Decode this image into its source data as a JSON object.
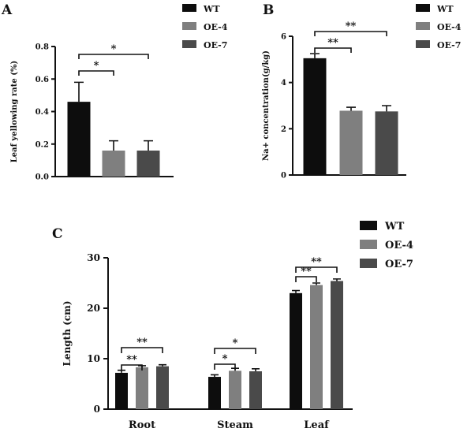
{
  "colors": {
    "WT": "#0d0d0d",
    "OE-4": "#7f7f7f",
    "OE-7": "#4a4a4a"
  },
  "chart_data": [
    {
      "panel": "A",
      "type": "bar",
      "categories": [
        "WT",
        "OE-4",
        "OE-7"
      ],
      "values": [
        0.46,
        0.16,
        0.16
      ],
      "errors": [
        0.12,
        0.06,
        0.06
      ],
      "ylabel": "Leaf yellowing rate (%)",
      "ylim": [
        0,
        0.8
      ],
      "yticks": [
        "0.0",
        "0.2",
        "0.4",
        "0.6",
        "0.8"
      ],
      "legend": [
        "WT",
        "OE-4",
        "OE-7"
      ],
      "legend_position": "top-right",
      "significance": [
        {
          "from": 0,
          "to": 1,
          "label": "*"
        },
        {
          "from": 0,
          "to": 2,
          "label": "*"
        }
      ]
    },
    {
      "panel": "B",
      "type": "bar",
      "categories": [
        "WT",
        "OE-4",
        "OE-7"
      ],
      "values": [
        5.05,
        2.78,
        2.75
      ],
      "errors": [
        0.2,
        0.15,
        0.25
      ],
      "ylabel": "Na+ concentration(g/kg)",
      "ylim": [
        0,
        6
      ],
      "yticks": [
        "0",
        "2",
        "4",
        "6"
      ],
      "legend": [
        "WT",
        "OE-4",
        "OE-7"
      ],
      "legend_position": "top-right",
      "significance": [
        {
          "from": 0,
          "to": 1,
          "label": "**"
        },
        {
          "from": 0,
          "to": 2,
          "label": "**"
        }
      ]
    },
    {
      "panel": "C",
      "type": "bar",
      "categories": [
        "Root",
        "Steam",
        "Leaf"
      ],
      "series": [
        {
          "name": "WT",
          "values": [
            7.2,
            6.4,
            23.0
          ],
          "errors": [
            0.5,
            0.4,
            0.5
          ]
        },
        {
          "name": "OE-4",
          "values": [
            8.3,
            7.6,
            24.6
          ],
          "errors": [
            0.3,
            0.5,
            0.4
          ]
        },
        {
          "name": "OE-7",
          "values": [
            8.5,
            7.5,
            25.4
          ],
          "errors": [
            0.3,
            0.5,
            0.4
          ]
        }
      ],
      "ylabel": "Length (cm)",
      "ylim": [
        0,
        30
      ],
      "yticks": [
        "0",
        "10",
        "20",
        "30"
      ],
      "legend_position": "top-right",
      "significance": [
        {
          "group": 0,
          "from": 0,
          "to": 1,
          "label": "**"
        },
        {
          "group": 0,
          "from": 0,
          "to": 2,
          "label": "**"
        },
        {
          "group": 1,
          "from": 0,
          "to": 1,
          "label": "*"
        },
        {
          "group": 1,
          "from": 0,
          "to": 2,
          "label": "*"
        },
        {
          "group": 2,
          "from": 0,
          "to": 1,
          "label": "**"
        },
        {
          "group": 2,
          "from": 0,
          "to": 2,
          "label": "**"
        }
      ]
    }
  ]
}
